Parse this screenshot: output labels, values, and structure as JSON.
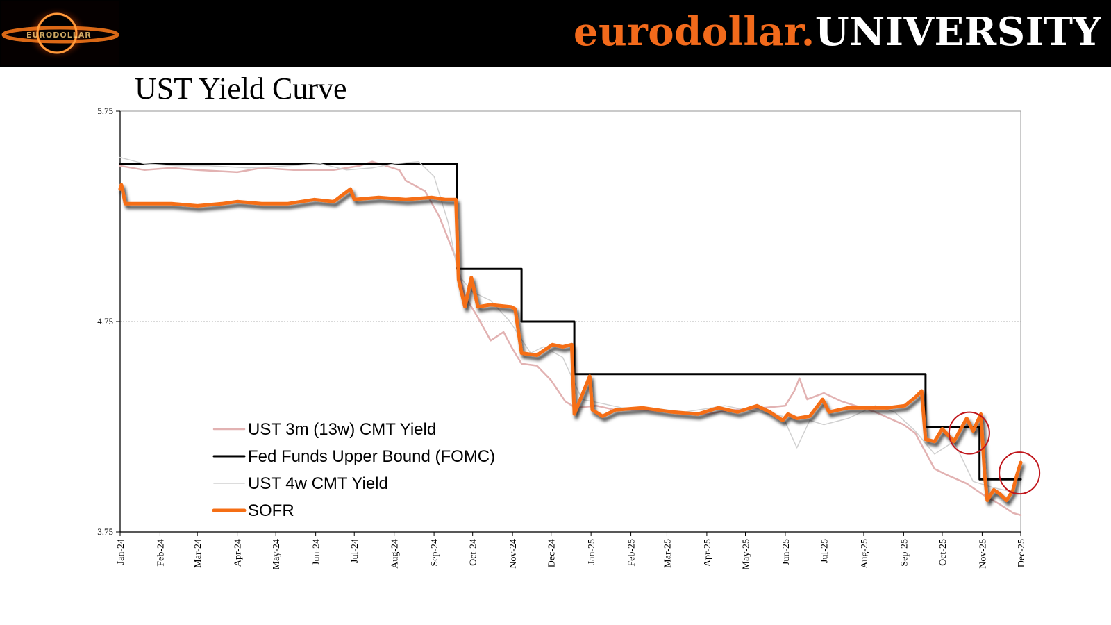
{
  "header": {
    "brand_part1": "eurodollar.",
    "brand_part2": "UNIVERSITY",
    "colors": {
      "band": "#000000",
      "orange": "#f26a1b",
      "white": "#ffffff"
    }
  },
  "logo": {
    "name": "black-hole-logo",
    "text": "EURODOLLAR"
  },
  "chart_data": {
    "type": "line",
    "title": "UST Yield Curve",
    "xlabel": "",
    "ylabel": "",
    "ylim": [
      3.75,
      5.75
    ],
    "yticks": [
      3.75,
      4.75,
      5.75
    ],
    "ytick_labels": [
      "3.75",
      "4.75",
      "5.75"
    ],
    "grid": "horizontal dotted",
    "legend_position": "bottom-left",
    "x_start": "2024-01-01",
    "x_end": "2025-12-01",
    "xtick_dates": [
      "2024-01-01",
      "2024-02-01",
      "2024-03-01",
      "2024-04-01",
      "2024-05-01",
      "2024-06-01",
      "2024-07-01",
      "2024-08-01",
      "2024-09-01",
      "2024-10-01",
      "2024-11-01",
      "2024-12-01",
      "2025-01-01",
      "2025-02-01",
      "2025-03-01",
      "2025-04-01",
      "2025-05-01",
      "2025-06-01",
      "2025-07-01",
      "2025-08-01",
      "2025-09-01",
      "2025-10-01",
      "2025-11-01",
      "2025-12-01"
    ],
    "xtick_labels": [
      "Jan-24",
      "Feb-24",
      "Mar-24",
      "Apr-24",
      "May-24",
      "Jun-24",
      "Jul-24",
      "Aug-24",
      "Sep-24",
      "Oct-24",
      "Nov-24",
      "Dec-24",
      "Jan-25",
      "Feb-25",
      "Mar-25",
      "Apr-25",
      "May-25",
      "Jun-25",
      "Jul-25",
      "Aug-25",
      "Sep-25",
      "Oct-25",
      "Nov-25",
      "Dec-25"
    ],
    "series": [
      {
        "name": "UST 3m (13w) CMT Yield",
        "color": "#e2b2b2",
        "width": 2.5,
        "points": [
          [
            "2024-01-01",
            5.49
          ],
          [
            "2024-01-20",
            5.47
          ],
          [
            "2024-02-10",
            5.48
          ],
          [
            "2024-03-01",
            5.47
          ],
          [
            "2024-04-01",
            5.46
          ],
          [
            "2024-04-20",
            5.48
          ],
          [
            "2024-05-15",
            5.47
          ],
          [
            "2024-06-15",
            5.47
          ],
          [
            "2024-07-05",
            5.49
          ],
          [
            "2024-07-15",
            5.51
          ],
          [
            "2024-08-05",
            5.47
          ],
          [
            "2024-08-10",
            5.42
          ],
          [
            "2024-08-25",
            5.37
          ],
          [
            "2024-09-05",
            5.25
          ],
          [
            "2024-09-18",
            5.05
          ],
          [
            "2024-09-25",
            4.87
          ],
          [
            "2024-10-05",
            4.77
          ],
          [
            "2024-10-15",
            4.66
          ],
          [
            "2024-10-25",
            4.7
          ],
          [
            "2024-11-01",
            4.62
          ],
          [
            "2024-11-08",
            4.55
          ],
          [
            "2024-11-20",
            4.54
          ],
          [
            "2024-12-01",
            4.47
          ],
          [
            "2024-12-12",
            4.37
          ],
          [
            "2024-12-20",
            4.34
          ],
          [
            "2025-01-05",
            4.35
          ],
          [
            "2025-01-20",
            4.33
          ],
          [
            "2025-02-10",
            4.33
          ],
          [
            "2025-03-05",
            4.32
          ],
          [
            "2025-04-01",
            4.31
          ],
          [
            "2025-04-20",
            4.33
          ],
          [
            "2025-05-15",
            4.34
          ],
          [
            "2025-06-01",
            4.35
          ],
          [
            "2025-06-08",
            4.42
          ],
          [
            "2025-06-12",
            4.48
          ],
          [
            "2025-06-18",
            4.38
          ],
          [
            "2025-07-01",
            4.41
          ],
          [
            "2025-07-15",
            4.37
          ],
          [
            "2025-08-10",
            4.32
          ],
          [
            "2025-09-01",
            4.26
          ],
          [
            "2025-09-10",
            4.22
          ],
          [
            "2025-09-25",
            4.05
          ],
          [
            "2025-10-05",
            4.02
          ],
          [
            "2025-10-20",
            3.98
          ],
          [
            "2025-11-01",
            3.93
          ],
          [
            "2025-11-15",
            3.88
          ],
          [
            "2025-11-25",
            3.84
          ],
          [
            "2025-12-01",
            3.83
          ]
        ]
      },
      {
        "name": "Fed Funds Upper Bound (FOMC)",
        "color": "#000000",
        "width": 3,
        "step": true,
        "points": [
          [
            "2024-01-01",
            5.5
          ],
          [
            "2024-09-19",
            5.0
          ],
          [
            "2024-11-08",
            4.75
          ],
          [
            "2024-12-19",
            4.5
          ],
          [
            "2025-09-18",
            4.25
          ],
          [
            "2025-10-30",
            4.0
          ],
          [
            "2025-12-01",
            4.0
          ]
        ]
      },
      {
        "name": "UST 4w CMT Yield",
        "color": "#d0d0d0",
        "width": 1.5,
        "points": [
          [
            "2024-01-01",
            5.53
          ],
          [
            "2024-01-20",
            5.5
          ],
          [
            "2024-02-15",
            5.49
          ],
          [
            "2024-03-10",
            5.49
          ],
          [
            "2024-04-10",
            5.48
          ],
          [
            "2024-05-10",
            5.49
          ],
          [
            "2024-06-05",
            5.5
          ],
          [
            "2024-06-25",
            5.47
          ],
          [
            "2024-07-15",
            5.48
          ],
          [
            "2024-08-01",
            5.5
          ],
          [
            "2024-08-20",
            5.51
          ],
          [
            "2024-09-01",
            5.44
          ],
          [
            "2024-09-12",
            5.22
          ],
          [
            "2024-09-20",
            4.97
          ],
          [
            "2024-10-01",
            4.89
          ],
          [
            "2024-10-15",
            4.85
          ],
          [
            "2024-10-30",
            4.75
          ],
          [
            "2024-11-15",
            4.6
          ],
          [
            "2024-11-25",
            4.63
          ],
          [
            "2024-12-10",
            4.58
          ],
          [
            "2024-12-25",
            4.38
          ],
          [
            "2025-01-10",
            4.36
          ],
          [
            "2025-01-25",
            4.34
          ],
          [
            "2025-02-15",
            4.34
          ],
          [
            "2025-03-15",
            4.32
          ],
          [
            "2025-04-15",
            4.35
          ],
          [
            "2025-05-10",
            4.32
          ],
          [
            "2025-05-30",
            4.3
          ],
          [
            "2025-06-10",
            4.15
          ],
          [
            "2025-06-20",
            4.28
          ],
          [
            "2025-07-01",
            4.26
          ],
          [
            "2025-07-20",
            4.29
          ],
          [
            "2025-08-10",
            4.35
          ],
          [
            "2025-08-25",
            4.32
          ],
          [
            "2025-09-10",
            4.23
          ],
          [
            "2025-09-25",
            4.12
          ],
          [
            "2025-10-10",
            4.18
          ],
          [
            "2025-10-25",
            3.99
          ],
          [
            "2025-11-10",
            3.96
          ],
          [
            "2025-11-25",
            3.94
          ],
          [
            "2025-12-01",
            3.93
          ]
        ]
      },
      {
        "name": "SOFR",
        "color": "#f56e14",
        "width": 5,
        "shadow": true,
        "points": [
          [
            "2024-01-01",
            5.38
          ],
          [
            "2024-01-02",
            5.4
          ],
          [
            "2024-01-05",
            5.31
          ],
          [
            "2024-01-20",
            5.31
          ],
          [
            "2024-02-10",
            5.31
          ],
          [
            "2024-03-01",
            5.3
          ],
          [
            "2024-03-20",
            5.31
          ],
          [
            "2024-04-01",
            5.32
          ],
          [
            "2024-04-20",
            5.31
          ],
          [
            "2024-05-10",
            5.31
          ],
          [
            "2024-05-31",
            5.33
          ],
          [
            "2024-06-15",
            5.32
          ],
          [
            "2024-06-28",
            5.38
          ],
          [
            "2024-07-01",
            5.33
          ],
          [
            "2024-07-20",
            5.34
          ],
          [
            "2024-08-10",
            5.33
          ],
          [
            "2024-08-30",
            5.34
          ],
          [
            "2024-09-10",
            5.33
          ],
          [
            "2024-09-18",
            5.33
          ],
          [
            "2024-09-20",
            4.95
          ],
          [
            "2024-09-25",
            4.82
          ],
          [
            "2024-09-30",
            4.96
          ],
          [
            "2024-10-05",
            4.82
          ],
          [
            "2024-10-15",
            4.83
          ],
          [
            "2024-10-31",
            4.82
          ],
          [
            "2024-11-03",
            4.81
          ],
          [
            "2024-11-08",
            4.6
          ],
          [
            "2024-11-20",
            4.59
          ],
          [
            "2024-12-02",
            4.64
          ],
          [
            "2024-12-10",
            4.63
          ],
          [
            "2024-12-17",
            4.64
          ],
          [
            "2024-12-19",
            4.31
          ],
          [
            "2024-12-31",
            4.49
          ],
          [
            "2025-01-02",
            4.33
          ],
          [
            "2025-01-10",
            4.3
          ],
          [
            "2025-01-20",
            4.33
          ],
          [
            "2025-02-10",
            4.34
          ],
          [
            "2025-03-05",
            4.32
          ],
          [
            "2025-03-25",
            4.31
          ],
          [
            "2025-04-10",
            4.34
          ],
          [
            "2025-04-25",
            4.32
          ],
          [
            "2025-05-10",
            4.35
          ],
          [
            "2025-05-20",
            4.32
          ],
          [
            "2025-05-30",
            4.28
          ],
          [
            "2025-06-03",
            4.31
          ],
          [
            "2025-06-10",
            4.29
          ],
          [
            "2025-06-20",
            4.3
          ],
          [
            "2025-06-30",
            4.38
          ],
          [
            "2025-07-05",
            4.32
          ],
          [
            "2025-07-20",
            4.34
          ],
          [
            "2025-08-05",
            4.34
          ],
          [
            "2025-08-20",
            4.34
          ],
          [
            "2025-09-02",
            4.35
          ],
          [
            "2025-09-10",
            4.39
          ],
          [
            "2025-09-15",
            4.42
          ],
          [
            "2025-09-18",
            4.19
          ],
          [
            "2025-09-25",
            4.18
          ],
          [
            "2025-10-01",
            4.24
          ],
          [
            "2025-10-10",
            4.18
          ],
          [
            "2025-10-20",
            4.29
          ],
          [
            "2025-10-25",
            4.23
          ],
          [
            "2025-10-31",
            4.31
          ],
          [
            "2025-11-03",
            4.02
          ],
          [
            "2025-11-05",
            3.9
          ],
          [
            "2025-11-10",
            3.95
          ],
          [
            "2025-11-15",
            3.93
          ],
          [
            "2025-11-20",
            3.9
          ],
          [
            "2025-11-25",
            3.95
          ],
          [
            "2025-11-28",
            4.02
          ],
          [
            "2025-12-01",
            4.08
          ]
        ]
      }
    ],
    "annotations": [
      {
        "type": "circle",
        "date": "2025-10-22",
        "value": 4.22,
        "color": "#c0161c"
      },
      {
        "type": "circle",
        "date": "2025-11-30",
        "value": 4.03,
        "color": "#c0161c"
      }
    ]
  }
}
